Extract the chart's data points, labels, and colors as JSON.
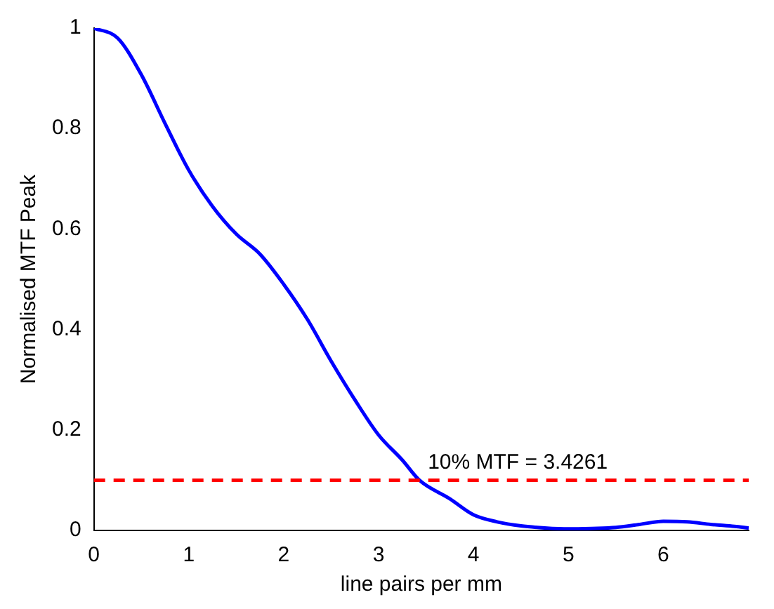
{
  "chart_data": {
    "type": "line",
    "xlabel": "line pairs per mm",
    "ylabel": "Normalised MTF Peak",
    "x": [
      0,
      0.25,
      0.5,
      0.75,
      1,
      1.25,
      1.5,
      1.75,
      2,
      2.25,
      2.5,
      2.75,
      3,
      3.25,
      3.43,
      3.75,
      4,
      4.25,
      4.5,
      4.75,
      5,
      5.25,
      5.5,
      5.75,
      6,
      6.25,
      6.5,
      6.75,
      6.9
    ],
    "series": [
      {
        "color": "#0000ff",
        "values": [
          1,
          0.98,
          0.907,
          0.81,
          0.717,
          0.645,
          0.59,
          0.55,
          0.49,
          0.42,
          0.337,
          0.26,
          0.19,
          0.14,
          0.1,
          0.063,
          0.031,
          0.017,
          0.009,
          0.005,
          0.003,
          0.004,
          0.006,
          0.012,
          0.018,
          0.017,
          0.012,
          0.008,
          0.005
        ]
      }
    ],
    "xlim": [
      0,
      6.9
    ],
    "xticks": [
      0,
      1,
      2,
      3,
      4,
      5,
      6
    ],
    "ylim": [
      0,
      1
    ],
    "yticks": [
      0,
      0.2,
      0.4,
      0.6,
      0.8,
      1
    ],
    "grid": false,
    "legend": false,
    "marker": "none",
    "line_style": "solid",
    "ref_lines": [
      {
        "axis": "y",
        "value": 0.1,
        "label": "10% MTF = 3.4261",
        "color": "#ff0000",
        "line_style": "dashed"
      }
    ]
  }
}
